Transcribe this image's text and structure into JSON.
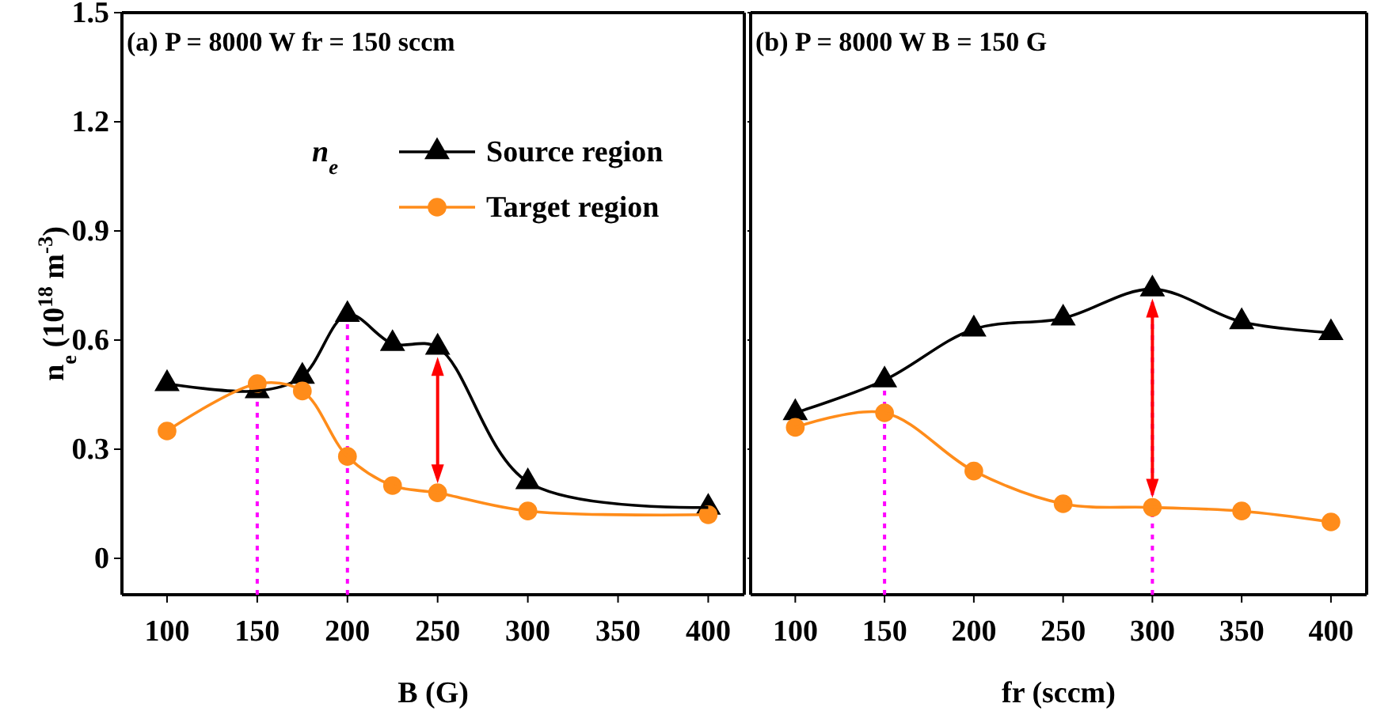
{
  "chart_data": [
    {
      "type": "line",
      "title": "(a) P = 8000 W fr = 150 sccm",
      "xlabel": "B (G)",
      "ylabel": "n$_{e}$ (10$^{18}$ m$^{-3}$)",
      "legend_title": "n$_{e}$",
      "x": [
        100,
        150,
        175,
        200,
        225,
        250,
        300,
        400
      ],
      "series": [
        {
          "name": "Source region",
          "color": "#000000",
          "marker": "triangle",
          "values": [
            0.48,
            0.46,
            0.5,
            0.67,
            0.59,
            0.58,
            0.21,
            0.14
          ]
        },
        {
          "name": "Target region",
          "color": "#ff8c1a",
          "marker": "circle",
          "values": [
            0.35,
            0.48,
            0.46,
            0.28,
            0.2,
            0.18,
            0.13,
            0.12
          ]
        }
      ],
      "xlim": [
        75,
        420
      ],
      "xticks": [
        100,
        150,
        200,
        250,
        300,
        350,
        400
      ],
      "ylim": [
        -0.1,
        1.5
      ],
      "yticks": [
        0,
        0.3,
        0.6,
        0.9,
        1.2,
        1.5
      ],
      "ref_lines": [
        {
          "axis": "x",
          "value": 150,
          "color": "#ff00ff",
          "line_style": "dotted"
        },
        {
          "axis": "x",
          "value": 200,
          "color": "#ff00ff",
          "line_style": "dotted"
        },
        {
          "axis": "x",
          "value": 250,
          "color": "#ff0000",
          "line_style": "solid"
        }
      ],
      "legend": "top right"
    },
    {
      "type": "line",
      "title": "(b) P = 8000 W B = 150 G",
      "xlabel": "fr (sccm)",
      "x": [
        100,
        150,
        200,
        250,
        300,
        350,
        400
      ],
      "series": [
        {
          "color": "#000000",
          "marker": "triangle",
          "values": [
            0.4,
            0.49,
            0.63,
            0.66,
            0.74,
            0.65,
            0.62
          ]
        },
        {
          "color": "#ff8c1a",
          "marker": "circle",
          "values": [
            0.36,
            0.4,
            0.24,
            0.15,
            0.14,
            0.13,
            0.1
          ]
        }
      ],
      "xlim": [
        75,
        420
      ],
      "xticks": [
        100,
        150,
        200,
        250,
        300,
        350,
        400
      ],
      "ylim": [
        -0.1,
        1.5
      ],
      "yticks": [
        0,
        0.3,
        0.6,
        0.9,
        1.2,
        1.5
      ],
      "ref_lines": [
        {
          "axis": "x",
          "value": 150,
          "color": "#ff00ff",
          "line_style": "dotted"
        },
        {
          "axis": "x",
          "value": 300,
          "color": "#ff00ff",
          "line_style": "dotted"
        },
        {
          "axis": "x",
          "value": 300,
          "color": "#ff0000",
          "line_style": "solid"
        }
      ],
      "tick_labels": "x"
    }
  ]
}
